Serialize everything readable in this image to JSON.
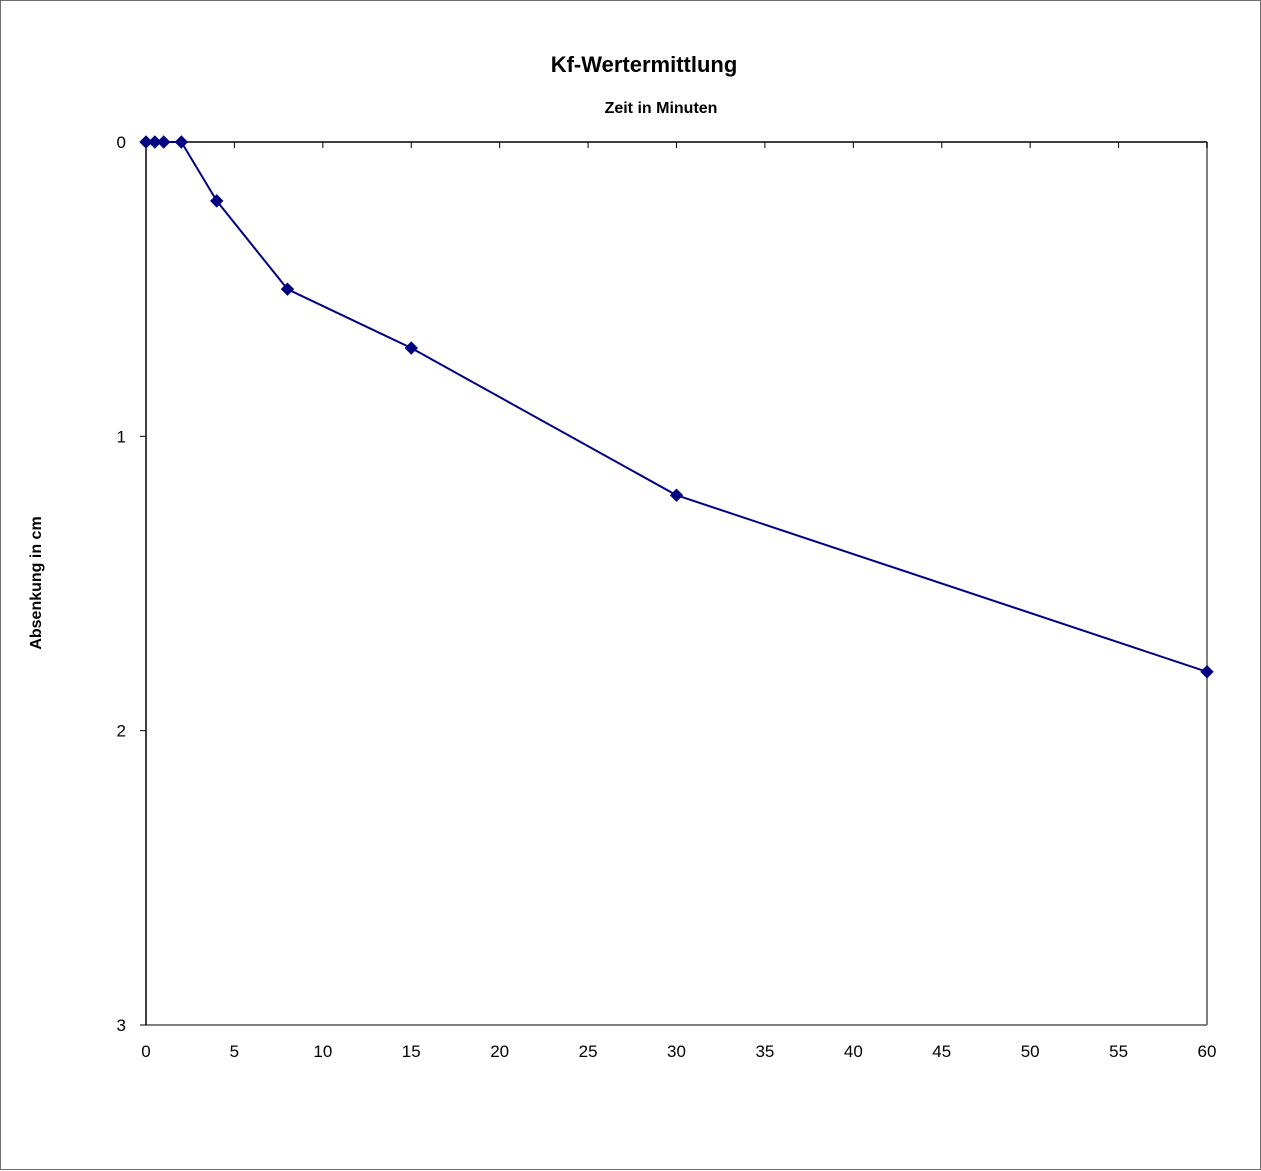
{
  "chart_data": {
    "type": "line",
    "title": "Kf-Wertermittlung",
    "xlabel": "Zeit in Minuten",
    "ylabel": "Absenkung in cm",
    "xlim": [
      0,
      60
    ],
    "ylim": [
      0,
      3
    ],
    "y_inverted": true,
    "x_axis_position": "top",
    "x_ticks": [
      0,
      5,
      10,
      15,
      20,
      25,
      30,
      35,
      40,
      45,
      50,
      55,
      60
    ],
    "y_ticks": [
      0,
      1,
      2,
      3
    ],
    "grid": false,
    "legend": "none",
    "series": [
      {
        "color": "#000080",
        "marker": "diamond",
        "x": [
          0,
          0.5,
          1,
          2,
          4,
          8,
          15,
          30,
          60
        ],
        "y": [
          0,
          0,
          0,
          0,
          0.2,
          0.5,
          0.7,
          1.2,
          1.8
        ]
      }
    ]
  }
}
